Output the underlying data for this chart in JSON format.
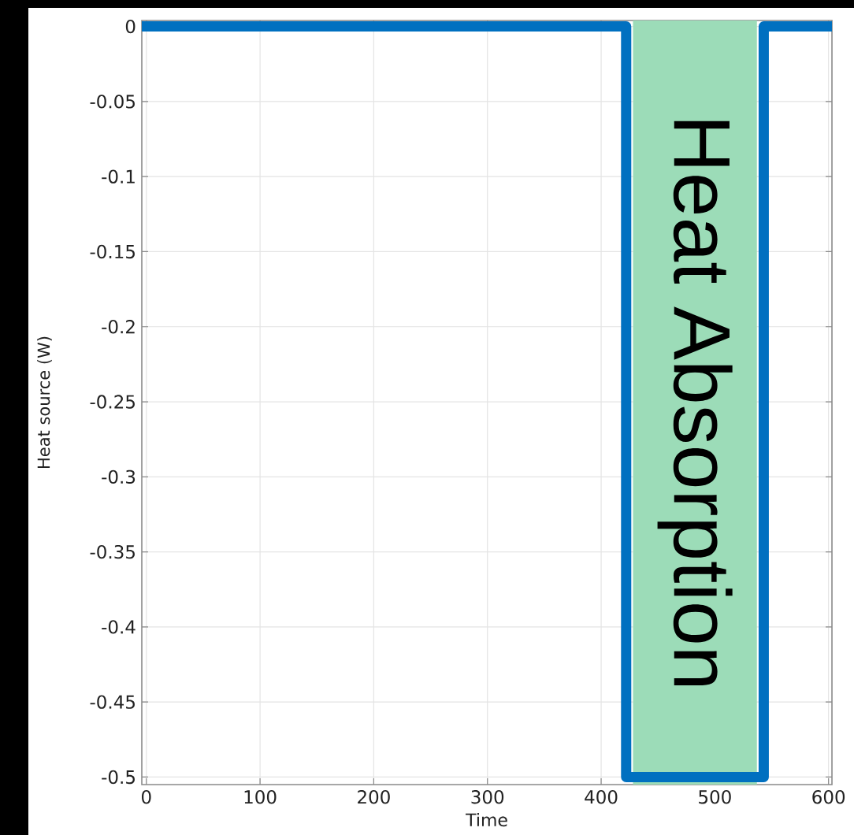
{
  "chart_data": {
    "type": "step",
    "xlabel": "Time",
    "ylabel": "Heat source (W)",
    "x": [
      -4,
      422,
      543,
      603
    ],
    "values": [
      0,
      -0.5,
      0,
      0
    ],
    "color": "#0070c0",
    "xlim": [
      -4,
      603
    ],
    "ylim": [
      -0.505,
      0.004
    ],
    "xticks": [
      0,
      100,
      200,
      300,
      400,
      500,
      600
    ],
    "yticks": [
      -0.5,
      -0.45,
      -0.4,
      -0.35,
      -0.3,
      -0.25,
      -0.2,
      -0.15,
      -0.1,
      -0.05,
      0
    ],
    "grid": true,
    "bands": [
      {
        "axis": "x",
        "from": 428,
        "to": 537,
        "label": "Heat Absorption",
        "color": "#9cdcb8"
      }
    ]
  }
}
